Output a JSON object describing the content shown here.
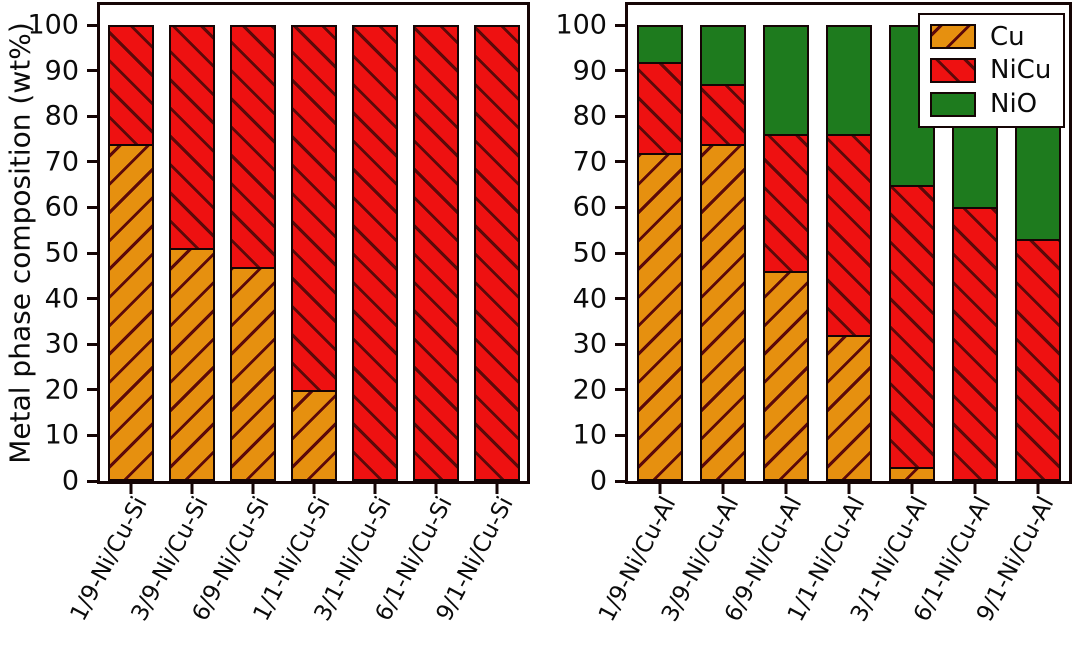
{
  "figure": {
    "ylabel": "Metal phase composition (wt%)",
    "colors": {
      "Cu": "#E6900F",
      "NiCu": "#EE1111",
      "NiO": "#1E7B1E",
      "hatch": "#5C0909",
      "edge": "#150505"
    }
  },
  "legend": {
    "position": "top-right",
    "entries": [
      {
        "label": "Cu",
        "color": "#E6900F",
        "hatch": "fwd"
      },
      {
        "label": "NiCu",
        "color": "#EE1111",
        "hatch": "bwd"
      },
      {
        "label": "NiO",
        "color": "#1E7B1E",
        "hatch": "none"
      }
    ]
  },
  "chart_data": [
    {
      "type": "bar",
      "stacked": true,
      "title": "",
      "xlabel": "",
      "ylabel": "Metal phase composition (wt%)",
      "ylim": [
        0,
        100
      ],
      "grid": false,
      "legend": false,
      "yticks": [
        0,
        10,
        20,
        30,
        40,
        50,
        60,
        70,
        80,
        90,
        100
      ],
      "categories": [
        "1/9-Ni/Cu-Si",
        "3/9-Ni/Cu-Si",
        "6/9-Ni/Cu-Si",
        "1/1-Ni/Cu-Si",
        "3/1-Ni/Cu-Si",
        "6/1-Ni/Cu-Si",
        "9/1-Ni/Cu-Si"
      ],
      "series": [
        {
          "name": "Cu",
          "hatch": "fwd",
          "values": [
            74,
            51,
            47,
            20,
            0,
            0,
            0
          ]
        },
        {
          "name": "NiCu",
          "hatch": "bwd",
          "values": [
            26,
            49,
            53,
            80,
            100,
            100,
            100
          ]
        },
        {
          "name": "NiO",
          "hatch": "none",
          "values": [
            0,
            0,
            0,
            0,
            0,
            0,
            0
          ]
        }
      ]
    },
    {
      "type": "bar",
      "stacked": true,
      "title": "",
      "xlabel": "",
      "ylabel": "",
      "ylim": [
        0,
        100
      ],
      "grid": false,
      "legend": true,
      "yticks": [
        0,
        10,
        20,
        30,
        40,
        50,
        60,
        70,
        80,
        90,
        100
      ],
      "categories": [
        "1/9-Ni/Cu-Al",
        "3/9-Ni/Cu-Al",
        "6/9-Ni/Cu-Al",
        "1/1-Ni/Cu-Al",
        "3/1-Ni/Cu-Al",
        "6/1-Ni/Cu-Al",
        "9/1-Ni/Cu-Al"
      ],
      "series": [
        {
          "name": "Cu",
          "hatch": "fwd",
          "values": [
            72,
            74,
            46,
            32,
            3,
            0,
            0
          ]
        },
        {
          "name": "NiCu",
          "hatch": "bwd",
          "values": [
            20,
            13,
            30,
            44,
            62,
            60,
            53
          ]
        },
        {
          "name": "NiO",
          "hatch": "none",
          "values": [
            8,
            13,
            24,
            24,
            35,
            40,
            47
          ]
        }
      ]
    }
  ]
}
